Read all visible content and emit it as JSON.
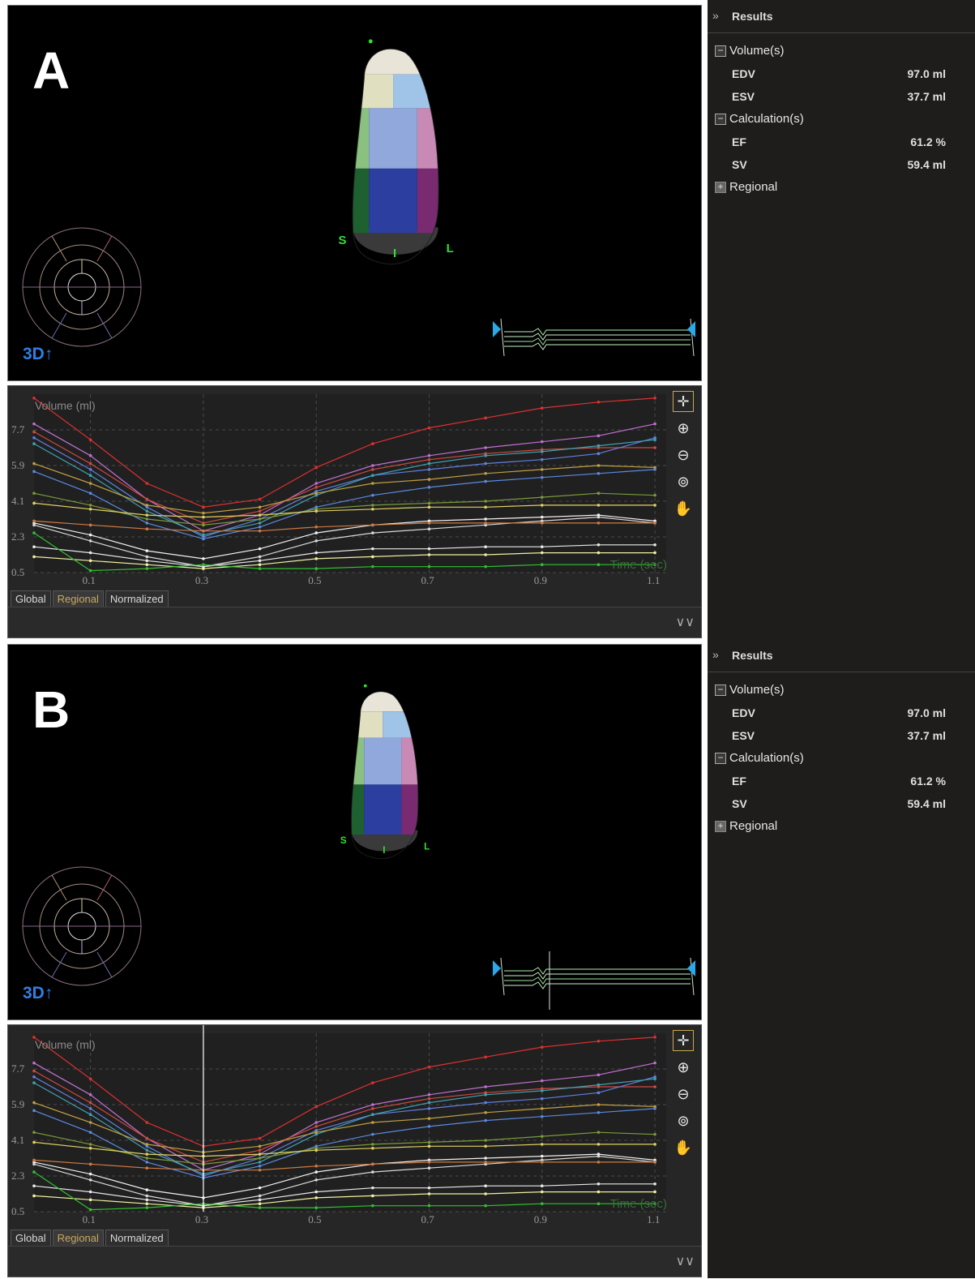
{
  "panels": [
    {
      "letter": "A",
      "view_label": "3D↑",
      "orientation_labels": [
        "S",
        "I",
        "L"
      ],
      "chart": {
        "title": "Volume (ml)",
        "time_label": "Time (sec)",
        "y_ticks": [
          "7.7",
          "5.9",
          "4.1",
          "2.3",
          "0.5"
        ],
        "x_ticks": [
          "0.1",
          "0.3",
          "0.5",
          "0.7",
          "0.9",
          "1.1"
        ],
        "show_cursor": false
      },
      "tabs": [
        "Global",
        "Regional",
        "Normalized"
      ],
      "active_tab": "Regional",
      "results": {
        "header": "Results",
        "volumes": {
          "label": "Volume(s)",
          "edv_label": "EDV",
          "edv_value": "97.0 ml",
          "esv_label": "ESV",
          "esv_value": "37.7 ml"
        },
        "calculations": {
          "label": "Calculation(s)",
          "ef_label": "EF",
          "ef_value": "61.2 %",
          "sv_label": "SV",
          "sv_value": "59.4 ml"
        },
        "regional": {
          "label": "Regional"
        }
      }
    },
    {
      "letter": "B",
      "view_label": "3D↑",
      "orientation_labels": [
        "S",
        "I",
        "L"
      ],
      "chart": {
        "title": "Volume (ml)",
        "time_label": "Time (sec)",
        "y_ticks": [
          "7.7",
          "5.9",
          "4.1",
          "2.3",
          "0.5"
        ],
        "x_ticks": [
          "0.1",
          "0.3",
          "0.5",
          "0.7",
          "0.9",
          "1.1"
        ],
        "show_cursor": true
      },
      "tabs": [
        "Global",
        "Regional",
        "Normalized"
      ],
      "active_tab": "Regional",
      "results": {
        "header": "Results",
        "volumes": {
          "label": "Volume(s)",
          "edv_label": "EDV",
          "edv_value": "97.0 ml",
          "esv_label": "ESV",
          "esv_value": "37.7 ml"
        },
        "calculations": {
          "label": "Calculation(s)",
          "ef_label": "EF",
          "ef_value": "61.2 %",
          "sv_label": "SV",
          "sv_value": "59.4 ml"
        },
        "regional": {
          "label": "Regional"
        }
      }
    }
  ],
  "chart_data": {
    "type": "line",
    "x_label": "Time (sec)",
    "y_label": "Volume (ml)",
    "xlim": [
      0.0,
      1.12
    ],
    "ylim": [
      0.5,
      9.5
    ],
    "x": [
      0.0,
      0.1,
      0.2,
      0.3,
      0.4,
      0.5,
      0.6,
      0.7,
      0.8,
      0.9,
      1.0,
      1.1
    ],
    "series": [
      {
        "color": "#e03030",
        "values": [
          9.3,
          7.2,
          5.0,
          3.8,
          4.2,
          5.8,
          7.0,
          7.8,
          8.3,
          8.8,
          9.1,
          9.3
        ]
      },
      {
        "color": "#c070d0",
        "values": [
          8.0,
          6.4,
          4.2,
          2.6,
          3.4,
          5.0,
          5.9,
          6.4,
          6.8,
          7.1,
          7.4,
          8.0
        ]
      },
      {
        "color": "#d04a40",
        "values": [
          7.6,
          6.0,
          4.2,
          3.0,
          3.6,
          4.8,
          5.7,
          6.2,
          6.5,
          6.7,
          6.8,
          6.8
        ]
      },
      {
        "color": "#6080e0",
        "values": [
          7.3,
          5.7,
          3.8,
          2.3,
          3.2,
          4.6,
          5.4,
          5.7,
          6.0,
          6.2,
          6.5,
          7.3
        ]
      },
      {
        "color": "#40a0b0",
        "values": [
          7.0,
          5.4,
          3.6,
          2.4,
          3.0,
          4.4,
          5.4,
          6.0,
          6.4,
          6.6,
          6.9,
          7.2
        ]
      },
      {
        "color": "#c0a040",
        "values": [
          6.0,
          5.0,
          3.9,
          3.5,
          3.8,
          4.5,
          5.0,
          5.2,
          5.5,
          5.7,
          5.9,
          5.8
        ]
      },
      {
        "color": "#5a8ae0",
        "values": [
          5.6,
          4.5,
          3.0,
          2.2,
          2.8,
          3.8,
          4.4,
          4.8,
          5.1,
          5.3,
          5.5,
          5.7
        ]
      },
      {
        "color": "#7a9a3a",
        "values": [
          4.5,
          3.9,
          3.2,
          2.9,
          3.2,
          3.7,
          3.9,
          4.0,
          4.1,
          4.3,
          4.5,
          4.4
        ]
      },
      {
        "color": "#e0d060",
        "values": [
          4.0,
          3.7,
          3.4,
          3.3,
          3.4,
          3.6,
          3.7,
          3.8,
          3.8,
          3.9,
          3.9,
          3.9
        ]
      },
      {
        "color": "#f0f0f0",
        "values": [
          3.0,
          2.4,
          1.6,
          1.2,
          1.7,
          2.5,
          2.9,
          3.1,
          3.2,
          3.3,
          3.4,
          3.1
        ]
      },
      {
        "color": "#d8d8d8",
        "values": [
          2.9,
          2.1,
          1.3,
          0.8,
          1.3,
          2.1,
          2.5,
          2.7,
          2.9,
          3.1,
          3.3,
          3.0
        ]
      },
      {
        "color": "#d07a40",
        "values": [
          3.1,
          2.9,
          2.7,
          2.6,
          2.6,
          2.8,
          2.9,
          3.0,
          3.0,
          3.0,
          3.0,
          3.0
        ]
      },
      {
        "color": "#e8e8e8",
        "values": [
          1.8,
          1.5,
          1.1,
          0.8,
          1.1,
          1.5,
          1.7,
          1.7,
          1.8,
          1.8,
          1.9,
          1.9
        ]
      },
      {
        "color": "#f0f0a0",
        "values": [
          1.3,
          1.1,
          0.9,
          0.7,
          0.9,
          1.2,
          1.3,
          1.4,
          1.4,
          1.5,
          1.5,
          1.5
        ]
      },
      {
        "color": "#30c030",
        "values": [
          2.5,
          0.6,
          0.7,
          0.9,
          0.7,
          0.7,
          0.8,
          0.8,
          0.8,
          0.9,
          0.9,
          0.9
        ]
      }
    ],
    "cursor_x": 0.3,
    "grid": true
  }
}
